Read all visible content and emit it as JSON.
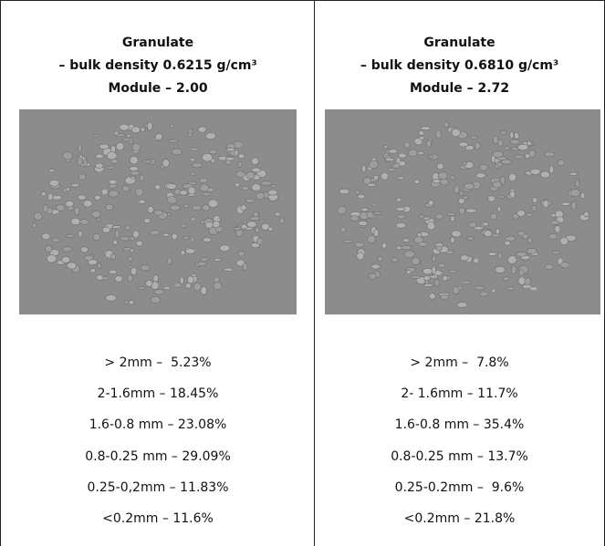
{
  "columns": [
    {
      "title": "Granulate",
      "subtitle": "– bulk density 0.6215 g/cm³",
      "module": "Module – 2.00",
      "fractions": [
        "> 2mm –  5.23%",
        "2-1.6mm – 18.45%",
        "1.6-0.8 mm – 23.08%",
        "0.8-0.25 mm – 29.09%",
        "0.25-0,2mm – 11.83%",
        "<0.2mm – 11.6%"
      ]
    },
    {
      "title": "Granulate",
      "subtitle": "– bulk density 0.6810 g/cm³",
      "module": "Module – 2.72",
      "fractions": [
        "> 2mm –  7.8%",
        "2- 1.6mm – 11.7%",
        "1.6-0.8 mm – 35.4%",
        "0.8-0.25 mm – 13.7%",
        "0.25-0.2mm –  9.6%",
        "<0.2mm – 21.8%"
      ]
    }
  ]
}
